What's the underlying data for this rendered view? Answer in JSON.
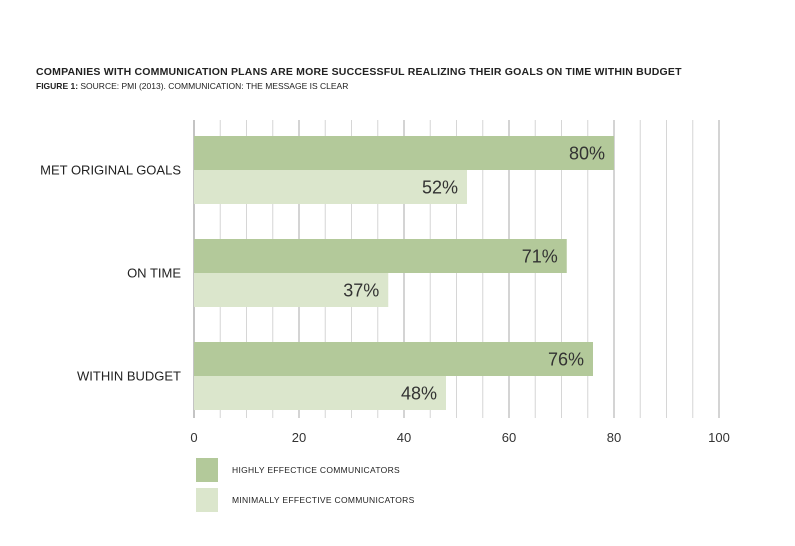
{
  "chart_data": {
    "type": "bar",
    "orientation": "horizontal",
    "title": "COMPANIES WITH COMMUNICATION PLANS ARE MORE SUCCESSFUL REALIZING THEIR GOALS ON TIME WITHIN BUDGET",
    "subtitle_prefix": "FIGURE 1:",
    "subtitle": " SOURCE: PMI (2013). COMMUNICATION: THE MESSAGE IS CLEAR",
    "categories": [
      "MET ORIGINAL GOALS",
      "ON TIME",
      "WITHIN BUDGET"
    ],
    "series": [
      {
        "name": "HIGHLY EFFECTICE COMMUNICATORS",
        "values": [
          80,
          71,
          76
        ],
        "labels": [
          "80%",
          "71%",
          "76%"
        ],
        "color": "#b3c99a"
      },
      {
        "name": "MINIMALLY EFFECTIVE COMMUNICATORS",
        "values": [
          52,
          37,
          48
        ],
        "labels": [
          "52%",
          "37%",
          "48%"
        ],
        "color": "#dbe6cc"
      }
    ],
    "xlim": [
      0,
      100
    ],
    "xticks": [
      0,
      20,
      40,
      60,
      80,
      100
    ],
    "xtick_labels": [
      "0",
      "20",
      "40",
      "60",
      "80",
      "100"
    ],
    "grid": true,
    "legend_position": "bottom-left"
  }
}
